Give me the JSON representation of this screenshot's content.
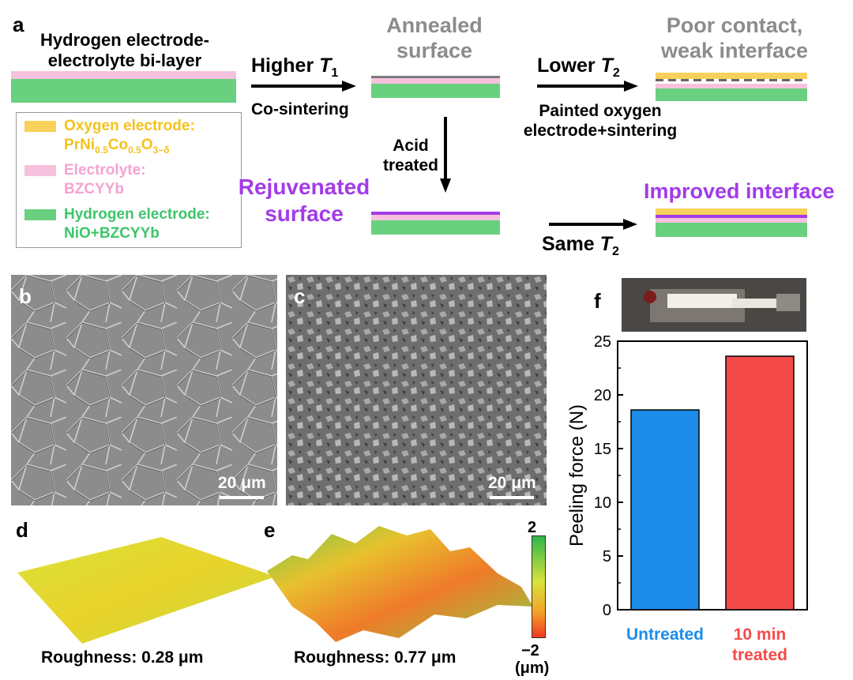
{
  "panels": {
    "a": "a",
    "b": "b",
    "c": "c",
    "d": "d",
    "e": "e",
    "f": "f"
  },
  "schematic": {
    "bilayer_title": "Hydrogen electrode-\nelectrolyte bi-layer",
    "arrow1_top_prefix": "Higher ",
    "arrow1_top_var": "T",
    "arrow1_top_sub": "1",
    "arrow1_bottom": "Co-sintering",
    "annealed": "Annealed\nsurface",
    "arrow2_top_prefix": "Lower ",
    "arrow2_top_var": "T",
    "arrow2_top_sub": "2",
    "arrow2_bottom": "Painted oxygen\nelectrode+sintering",
    "poor_contact": "Poor contact,\nweak interface",
    "acid_treated": "Acid\ntreated",
    "rejuvenated": "Rejuvenated\nsurface",
    "arrow3_prefix": "Same ",
    "arrow3_var": "T",
    "arrow3_sub": "2",
    "improved": "Improved interface",
    "legend": {
      "oxygen_label": "Oxygen electrode:",
      "oxygen_formula": {
        "base": "PrNi",
        "s1": "0.5",
        "mid": "Co",
        "s2": "0.5",
        "o": "O",
        "s3": "3−δ"
      },
      "electrolyte_label": "Electrolyte:",
      "electrolyte_value": "BZCYYb",
      "hydrogen_label": "Hydrogen electrode:",
      "hydrogen_value": "NiO+BZCYYb"
    },
    "colors": {
      "oxygen": "#f7d15a",
      "electrolyte": "#f7c2de",
      "hydrogen": "#69d07f",
      "annealed_line": "#7a7a7a",
      "rejuvenated_line": "#a23be8"
    }
  },
  "sem": {
    "b_scale": "20 μm",
    "c_scale": "20 μm"
  },
  "roughness": {
    "d_label": "Roughness: 0.28 μm",
    "e_label": "Roughness: 0.77 μm",
    "colorbar_max": "2",
    "colorbar_min": "−2",
    "colorbar_unit": "(μm)"
  },
  "chart_data": {
    "type": "bar",
    "categories": [
      "Untreated",
      "10 min\ntreated"
    ],
    "values": [
      18.6,
      23.6
    ],
    "colors": [
      "#1c8ce8",
      "#f44a4a"
    ],
    "ylabel": "Peeling force (N)",
    "ylim": [
      0,
      25
    ],
    "yticks": [
      "0",
      "5",
      "10",
      "15",
      "20",
      "25"
    ],
    "grid": false
  }
}
